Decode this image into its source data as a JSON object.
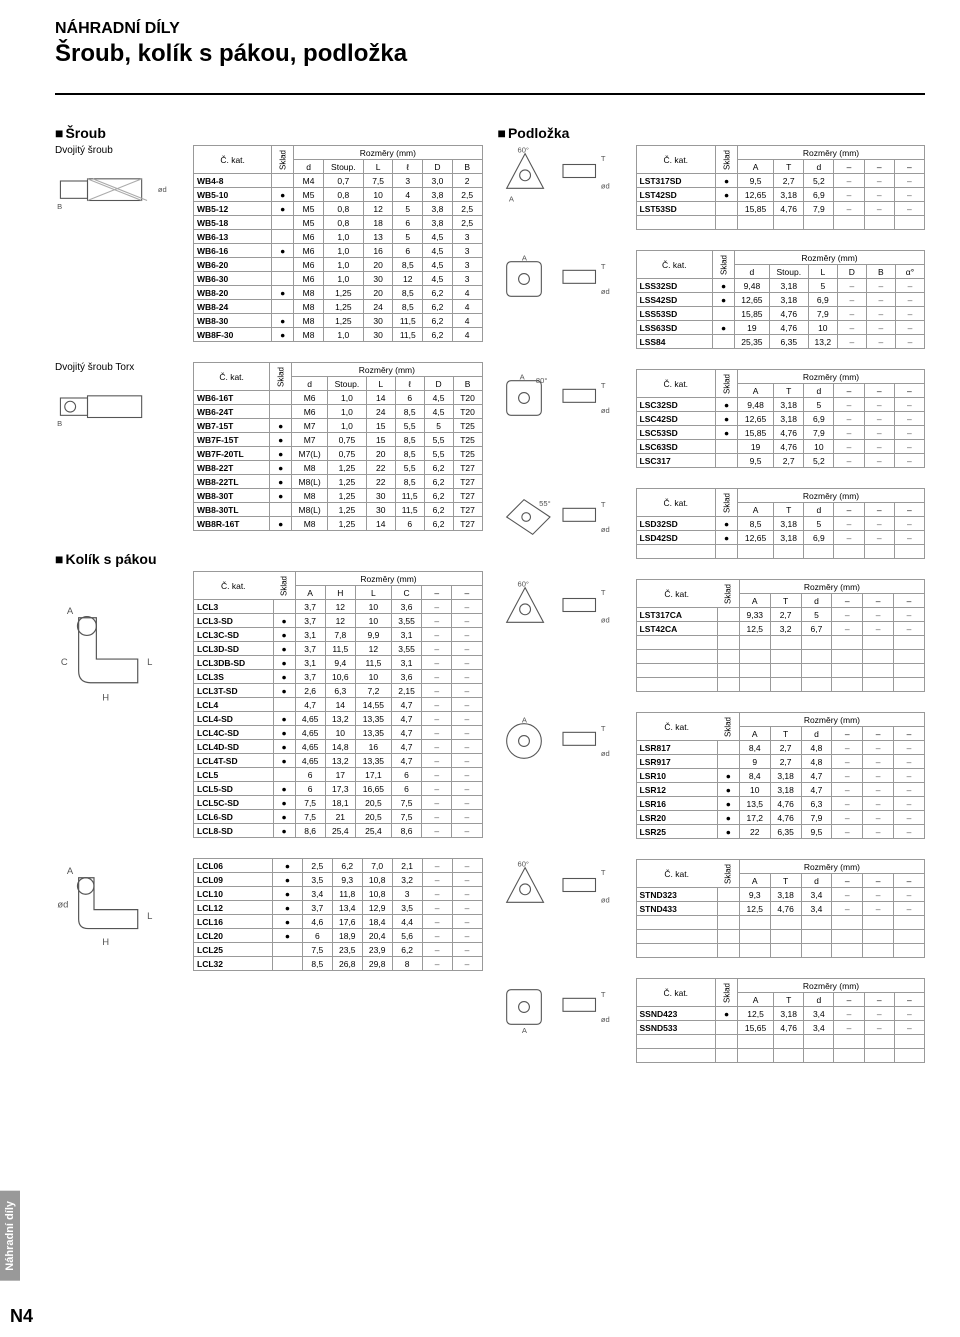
{
  "page_title_small": "NÁHRADNÍ DÍLY",
  "page_title_large": "Šroub, kolík s pákou, podložka",
  "tab_label": "Náhradní díly",
  "page_number": "N4",
  "sec_sroub": "Šroub",
  "sec_podlozka": "Podložka",
  "sec_kolik": "Kolík s pákou",
  "sub_dvojity": "Dvojitý šroub",
  "sub_dvojity_torx": "Dvojitý šroub Torx",
  "hdr_kat": "Č. kat.",
  "hdr_sklad": "Sklad",
  "hdr_rozmery": "Rozměry (mm)",
  "hdr_d": "d",
  "hdr_stoup": "Stoup.",
  "hdr_L": "L",
  "hdr_l": "ℓ",
  "hdr_D": "D",
  "hdr_B": "B",
  "hdr_A": "A",
  "hdr_H": "H",
  "hdr_C": "C",
  "hdr_T": "T",
  "hdr_alpha": "α°",
  "t1": {
    "cols": [
      "d",
      "Stoup.",
      "L",
      "ℓ",
      "D",
      "B"
    ],
    "rows": [
      [
        "WB4-8",
        "",
        "M4",
        "0,7",
        "7,5",
        "3",
        "3,0",
        "2"
      ],
      [
        "WB5-10",
        "●",
        "M5",
        "0,8",
        "10",
        "4",
        "3,8",
        "2,5"
      ],
      [
        "WB5-12",
        "●",
        "M5",
        "0,8",
        "12",
        "5",
        "3,8",
        "2,5"
      ],
      [
        "WB5-18",
        "",
        "M5",
        "0,8",
        "18",
        "6",
        "3,8",
        "2,5"
      ],
      [
        "WB6-13",
        "",
        "M6",
        "1,0",
        "13",
        "5",
        "4,5",
        "3"
      ],
      [
        "WB6-16",
        "●",
        "M6",
        "1,0",
        "16",
        "6",
        "4,5",
        "3"
      ],
      [
        "WB6-20",
        "",
        "M6",
        "1,0",
        "20",
        "8,5",
        "4,5",
        "3"
      ],
      [
        "WB6-30",
        "",
        "M6",
        "1,0",
        "30",
        "12",
        "4,5",
        "3"
      ],
      [
        "WB8-20",
        "●",
        "M8",
        "1,25",
        "20",
        "8,5",
        "6,2",
        "4"
      ],
      [
        "WB8-24",
        "",
        "M8",
        "1,25",
        "24",
        "8,5",
        "6,2",
        "4"
      ],
      [
        "WB8-30",
        "●",
        "M8",
        "1,25",
        "30",
        "11,5",
        "6,2",
        "4"
      ],
      [
        "WB8F-30",
        "●",
        "M8",
        "1,0",
        "30",
        "11,5",
        "6,2",
        "4"
      ]
    ]
  },
  "t2": {
    "cols": [
      "d",
      "Stoup.",
      "L",
      "ℓ",
      "D",
      "B"
    ],
    "rows": [
      [
        "WB6-16T",
        "",
        "M6",
        "1,0",
        "14",
        "6",
        "4,5",
        "T20"
      ],
      [
        "WB6-24T",
        "",
        "M6",
        "1,0",
        "24",
        "8,5",
        "4,5",
        "T20"
      ],
      [
        "WB7-15T",
        "●",
        "M7",
        "1,0",
        "15",
        "5,5",
        "5",
        "T25"
      ],
      [
        "WB7F-15T",
        "●",
        "M7",
        "0,75",
        "15",
        "8,5",
        "5,5",
        "T25"
      ],
      [
        "WB7F-20TL",
        "●",
        "M7(L)",
        "0,75",
        "20",
        "8,5",
        "5,5",
        "T25"
      ],
      [
        "WB8-22T",
        "●",
        "M8",
        "1,25",
        "22",
        "5,5",
        "6,2",
        "T27"
      ],
      [
        "WB8-22TL",
        "●",
        "M8(L)",
        "1,25",
        "22",
        "8,5",
        "6,2",
        "T27"
      ],
      [
        "WB8-30T",
        "●",
        "M8",
        "1,25",
        "30",
        "11,5",
        "6,2",
        "T27"
      ],
      [
        "WB8-30TL",
        "",
        "M8(L)",
        "1,25",
        "30",
        "11,5",
        "6,2",
        "T27"
      ],
      [
        "WB8R-16T",
        "●",
        "M8",
        "1,25",
        "14",
        "6",
        "6,2",
        "T27"
      ]
    ]
  },
  "t3": {
    "cols": [
      "A",
      "H",
      "L",
      "C",
      "–",
      "–"
    ],
    "rows": [
      [
        "LCL3",
        "",
        "3,7",
        "12",
        "10",
        "3,6",
        "–",
        "–"
      ],
      [
        "LCL3-SD",
        "●",
        "3,7",
        "12",
        "10",
        "3,55",
        "–",
        "–"
      ],
      [
        "LCL3C-SD",
        "●",
        "3,1",
        "7,8",
        "9,9",
        "3,1",
        "–",
        "–"
      ],
      [
        "LCL3D-SD",
        "●",
        "3,7",
        "11,5",
        "12",
        "3,55",
        "–",
        "–"
      ],
      [
        "LCL3DB-SD",
        "●",
        "3,1",
        "9,4",
        "11,5",
        "3,1",
        "–",
        "–"
      ],
      [
        "LCL3S",
        "●",
        "3,7",
        "10,6",
        "10",
        "3,6",
        "–",
        "–"
      ],
      [
        "LCL3T-SD",
        "●",
        "2,6",
        "6,3",
        "7,2",
        "2,15",
        "–",
        "–"
      ],
      [
        "LCL4",
        "",
        "4,7",
        "14",
        "14,55",
        "4,7",
        "–",
        "–"
      ],
      [
        "LCL4-SD",
        "●",
        "4,65",
        "13,2",
        "13,35",
        "4,7",
        "–",
        "–"
      ],
      [
        "LCL4C-SD",
        "●",
        "4,65",
        "10",
        "13,35",
        "4,7",
        "–",
        "–"
      ],
      [
        "LCL4D-SD",
        "●",
        "4,65",
        "14,8",
        "16",
        "4,7",
        "–",
        "–"
      ],
      [
        "LCL4T-SD",
        "●",
        "4,65",
        "13,2",
        "13,35",
        "4,7",
        "–",
        "–"
      ],
      [
        "LCL5",
        "",
        "6",
        "17",
        "17,1",
        "6",
        "–",
        "–"
      ],
      [
        "LCL5-SD",
        "●",
        "6",
        "17,3",
        "16,65",
        "6",
        "–",
        "–"
      ],
      [
        "LCL5C-SD",
        "●",
        "7,5",
        "18,1",
        "20,5",
        "7,5",
        "–",
        "–"
      ],
      [
        "LCL6-SD",
        "●",
        "7,5",
        "21",
        "20,5",
        "7,5",
        "–",
        "–"
      ],
      [
        "LCL8-SD",
        "●",
        "8,6",
        "25,4",
        "25,4",
        "8,6",
        "–",
        "–"
      ]
    ]
  },
  "t4": {
    "rows": [
      [
        "LCL06",
        "●",
        "2,5",
        "6,2",
        "7,0",
        "2,1",
        "–",
        "–"
      ],
      [
        "LCL09",
        "●",
        "3,5",
        "9,3",
        "10,8",
        "3,2",
        "–",
        "–"
      ],
      [
        "LCL10",
        "●",
        "3,4",
        "11,8",
        "10,8",
        "3",
        "–",
        "–"
      ],
      [
        "LCL12",
        "●",
        "3,7",
        "13,4",
        "12,9",
        "3,5",
        "–",
        "–"
      ],
      [
        "LCL16",
        "●",
        "4,6",
        "17,6",
        "18,4",
        "4,4",
        "–",
        "–"
      ],
      [
        "LCL20",
        "●",
        "6",
        "18,9",
        "20,4",
        "5,6",
        "–",
        "–"
      ],
      [
        "LCL25",
        "",
        "7,5",
        "23,5",
        "23,9",
        "6,2",
        "–",
        "–"
      ],
      [
        "LCL32",
        "",
        "8,5",
        "26,8",
        "29,8",
        "8",
        "–",
        "–"
      ]
    ]
  },
  "p1": {
    "cols": [
      "A",
      "T",
      "d",
      "–",
      "–",
      "–"
    ],
    "rows": [
      [
        "LST317SD",
        "●",
        "9,5",
        "2,7",
        "5,2",
        "–",
        "–",
        "–"
      ],
      [
        "LST42SD",
        "●",
        "12,65",
        "3,18",
        "6,9",
        "–",
        "–",
        "–"
      ],
      [
        "LST53SD",
        "",
        "15,85",
        "4,76",
        "7,9",
        "–",
        "–",
        "–"
      ]
    ]
  },
  "p2": {
    "cols": [
      "d",
      "Stoup.",
      "L",
      "D",
      "B",
      "α°"
    ],
    "rows": [
      [
        "LSS32SD",
        "●",
        "9,48",
        "3,18",
        "5",
        "–",
        "–",
        "–"
      ],
      [
        "LSS42SD",
        "●",
        "12,65",
        "3,18",
        "6,9",
        "–",
        "–",
        "–"
      ],
      [
        "LSS53SD",
        "",
        "15,85",
        "4,76",
        "7,9",
        "–",
        "–",
        "–"
      ],
      [
        "LSS63SD",
        "●",
        "19",
        "4,76",
        "10",
        "–",
        "–",
        "–"
      ],
      [
        "LSS84",
        "",
        "25,35",
        "6,35",
        "13,2",
        "–",
        "–",
        "–"
      ]
    ]
  },
  "p3": {
    "cols": [
      "A",
      "T",
      "d",
      "–",
      "–",
      "–"
    ],
    "rows": [
      [
        "LSC32SD",
        "●",
        "9,48",
        "3,18",
        "5",
        "–",
        "–",
        "–"
      ],
      [
        "LSC42SD",
        "●",
        "12,65",
        "3,18",
        "6,9",
        "–",
        "–",
        "–"
      ],
      [
        "LSC53SD",
        "●",
        "15,85",
        "4,76",
        "7,9",
        "–",
        "–",
        "–"
      ],
      [
        "LSC63SD",
        "",
        "19",
        "4,76",
        "10",
        "–",
        "–",
        "–"
      ],
      [
        "LSC317",
        "",
        "9,5",
        "2,7",
        "5,2",
        "–",
        "–",
        "–"
      ]
    ]
  },
  "p4": {
    "cols": [
      "A",
      "T",
      "d",
      "–",
      "–",
      "–"
    ],
    "rows": [
      [
        "LSD32SD",
        "●",
        "8,5",
        "3,18",
        "5",
        "–",
        "–",
        "–"
      ],
      [
        "LSD42SD",
        "●",
        "12,65",
        "3,18",
        "6,9",
        "–",
        "–",
        "–"
      ]
    ]
  },
  "p5": {
    "cols": [
      "A",
      "T",
      "d",
      "–",
      "–",
      "–"
    ],
    "rows": [
      [
        "LST317CA",
        "",
        "9,33",
        "2,7",
        "5",
        "–",
        "–",
        "–"
      ],
      [
        "LST42CA",
        "",
        "12,5",
        "3,2",
        "6,7",
        "–",
        "–",
        "–"
      ]
    ]
  },
  "p6": {
    "cols": [
      "A",
      "T",
      "d",
      "–",
      "–",
      "–"
    ],
    "rows": [
      [
        "LSR817",
        "",
        "8,4",
        "2,7",
        "4,8",
        "–",
        "–",
        "–"
      ],
      [
        "LSR917",
        "",
        "9",
        "2,7",
        "4,8",
        "–",
        "–",
        "–"
      ],
      [
        "LSR10",
        "●",
        "8,4",
        "3,18",
        "4,7",
        "–",
        "–",
        "–"
      ],
      [
        "LSR12",
        "●",
        "10",
        "3,18",
        "4,7",
        "–",
        "–",
        "–"
      ],
      [
        "LSR16",
        "●",
        "13,5",
        "4,76",
        "6,3",
        "–",
        "–",
        "–"
      ],
      [
        "LSR20",
        "●",
        "17,2",
        "4,76",
        "7,9",
        "–",
        "–",
        "–"
      ],
      [
        "LSR25",
        "●",
        "22",
        "6,35",
        "9,5",
        "–",
        "–",
        "–"
      ]
    ]
  },
  "p7": {
    "cols": [
      "A",
      "T",
      "d",
      "–",
      "–",
      "–"
    ],
    "rows": [
      [
        "STND323",
        "",
        "9,3",
        "3,18",
        "3,4",
        "–",
        "–",
        "–"
      ],
      [
        "STND433",
        "",
        "12,5",
        "4,76",
        "3,4",
        "–",
        "–",
        "–"
      ]
    ]
  },
  "p8": {
    "cols": [
      "A",
      "T",
      "d",
      "–",
      "–",
      "–"
    ],
    "rows": [
      [
        "SSND423",
        "●",
        "12,5",
        "3,18",
        "3,4",
        "–",
        "–",
        "–"
      ],
      [
        "SSND533",
        "",
        "15,65",
        "4,76",
        "3,4",
        "–",
        "–",
        "–"
      ]
    ]
  }
}
